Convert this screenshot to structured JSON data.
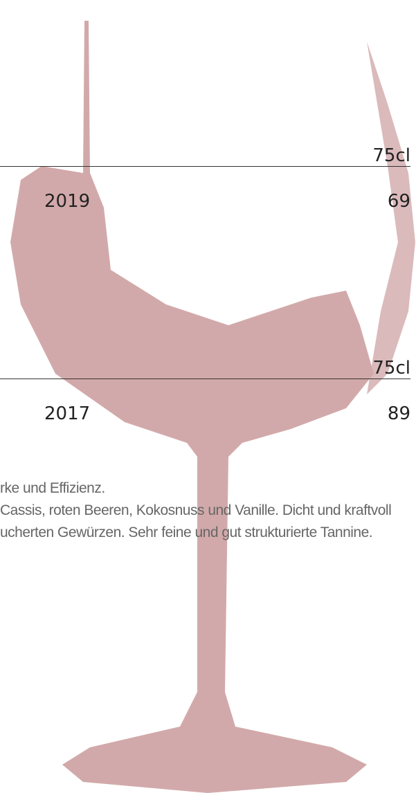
{
  "items": [
    {
      "size": "75cl",
      "year": "2019",
      "score": "69"
    },
    {
      "size": "75cl",
      "year": "2017",
      "score": "89"
    }
  ],
  "description": [
    "rke und Effizienz.",
    "Cassis, roten Beeren, Kokosnuss und Vanille. Dicht und kraftvoll",
    "ucherten Gewürzen. Sehr feine und gut strukturierte Tannine."
  ]
}
